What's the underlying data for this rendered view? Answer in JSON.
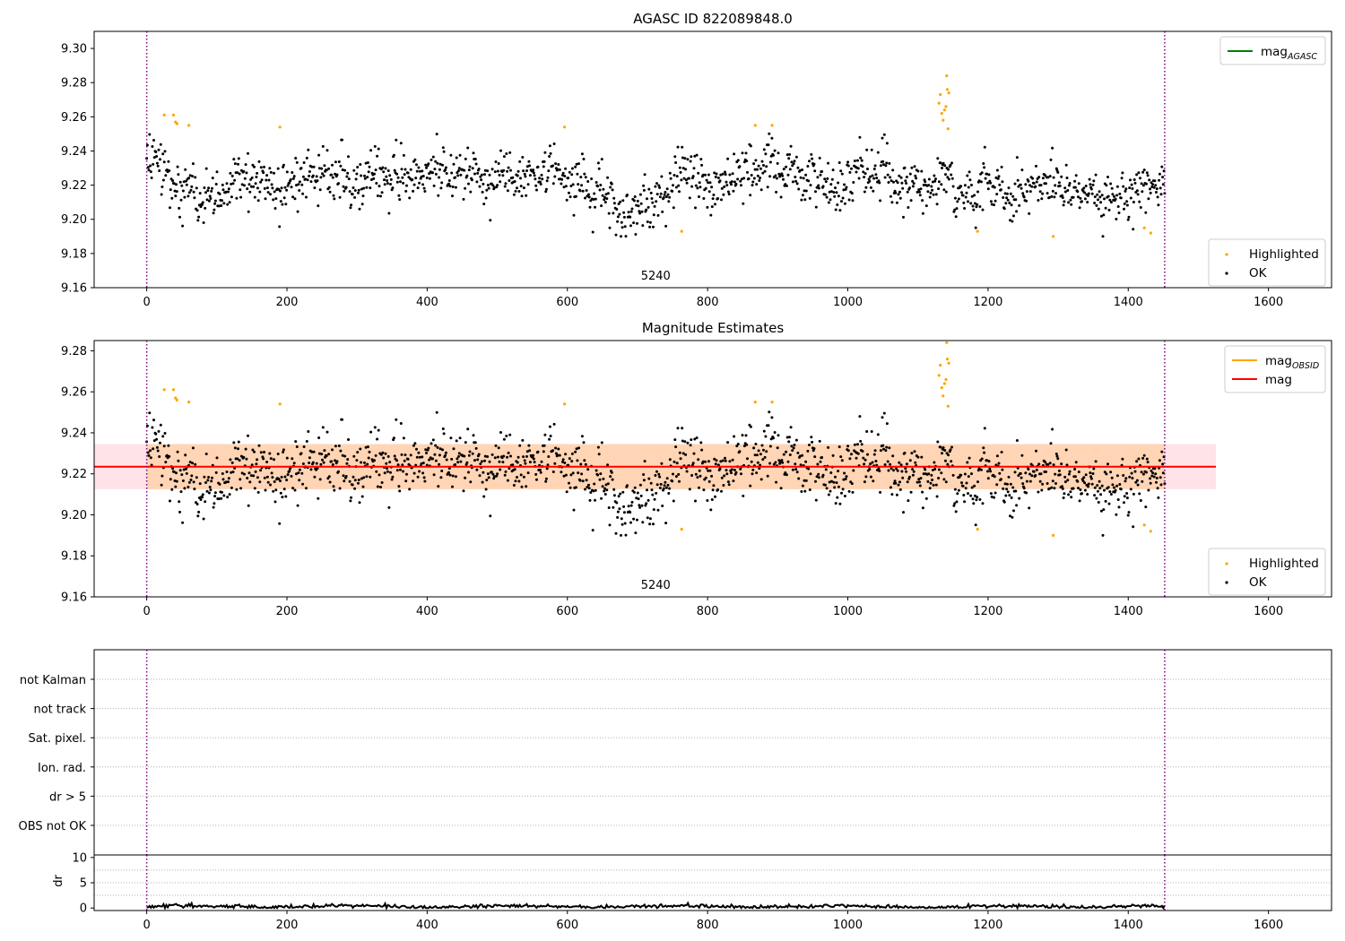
{
  "chart_data": [
    {
      "type": "scatter",
      "title": "AGASC ID 822089848.0",
      "xlim": [
        -75,
        1690
      ],
      "ylim": [
        9.16,
        9.31
      ],
      "xticks": [
        0,
        200,
        400,
        600,
        800,
        1000,
        1200,
        1400,
        1600
      ],
      "yticks": [
        9.16,
        9.18,
        9.2,
        9.22,
        9.24,
        9.26,
        9.28,
        9.3
      ],
      "vlines": [
        0,
        1452
      ],
      "annotation": {
        "text": "5240",
        "x": 726,
        "y": 9.167
      },
      "legend_upper": {
        "position": "upper right",
        "entries": [
          {
            "label": "mag",
            "subscript": "AGASC",
            "color": "#008000",
            "kind": "line"
          }
        ]
      },
      "legend_lower": {
        "position": "lower right",
        "entries": [
          {
            "label": "Highlighted",
            "color": "#ffa500",
            "kind": "marker"
          },
          {
            "label": "OK",
            "color": "#000000",
            "kind": "marker"
          }
        ]
      },
      "series_ok": {
        "x_range": [
          0,
          1452
        ],
        "count": 1450,
        "mean": 9.223,
        "std": 0.009
      },
      "series_highlighted": {
        "points": [
          [
            25,
            9.261
          ],
          [
            38,
            9.261
          ],
          [
            41,
            9.257
          ],
          [
            43,
            9.256
          ],
          [
            60,
            9.255
          ],
          [
            190,
            9.254
          ],
          [
            596,
            9.254
          ],
          [
            763,
            9.193
          ],
          [
            868,
            9.255
          ],
          [
            892,
            9.255
          ],
          [
            1130,
            9.268
          ],
          [
            1132,
            9.273
          ],
          [
            1134,
            9.262
          ],
          [
            1136,
            9.258
          ],
          [
            1138,
            9.264
          ],
          [
            1140,
            9.266
          ],
          [
            1141,
            9.284
          ],
          [
            1142,
            9.276
          ],
          [
            1143,
            9.253
          ],
          [
            1144,
            9.274
          ],
          [
            1185,
            9.193
          ],
          [
            1293,
            9.19
          ],
          [
            1423,
            9.195
          ],
          [
            1432,
            9.192
          ]
        ]
      }
    },
    {
      "type": "scatter",
      "title": "Magnitude Estimates",
      "xlim": [
        -75,
        1690
      ],
      "ylim": [
        9.16,
        9.285
      ],
      "xticks": [
        0,
        200,
        400,
        600,
        800,
        1000,
        1200,
        1400,
        1600
      ],
      "yticks": [
        9.16,
        9.18,
        9.2,
        9.22,
        9.24,
        9.26,
        9.28
      ],
      "vlines": [
        0,
        1452
      ],
      "annotation": {
        "text": "5240",
        "x": 726,
        "y": 9.167
      },
      "mag_line": {
        "value": 9.2235,
        "x_range": [
          -75,
          1525
        ],
        "color": "#ff0000"
      },
      "mag_band": {
        "low": 9.2125,
        "high": 9.2345,
        "x_range": [
          -75,
          1525
        ],
        "color": "#ffc0cb"
      },
      "mag_obsid_band": {
        "low": 9.2125,
        "high": 9.2345,
        "x_range": [
          0,
          1452
        ],
        "color": "#ffa500"
      },
      "legend_upper": {
        "position": "upper right",
        "entries": [
          {
            "label": "mag",
            "subscript": "OBSID",
            "color": "#ffa500",
            "kind": "line"
          },
          {
            "label": "mag",
            "subscript": "",
            "color": "#ff0000",
            "kind": "line"
          }
        ]
      },
      "legend_lower": {
        "position": "lower right",
        "entries": [
          {
            "label": "Highlighted",
            "color": "#ffa500",
            "kind": "marker"
          },
          {
            "label": "OK",
            "color": "#000000",
            "kind": "marker"
          }
        ]
      }
    },
    {
      "type": "scatter",
      "title": "",
      "xlim": [
        -75,
        1690
      ],
      "categories": [
        "not Kalman",
        "not track",
        "Sat. pixel.",
        "Ion. rad.",
        "dr > 5",
        "OBS not OK"
      ],
      "vlines": [
        0,
        1452
      ]
    },
    {
      "type": "line",
      "ylabel": "dr",
      "xlim": [
        -75,
        1690
      ],
      "ylim": [
        -0.5,
        10.5
      ],
      "xticks": [
        0,
        200,
        400,
        600,
        800,
        1000,
        1200,
        1400,
        1600
      ],
      "yticks": [
        0,
        5,
        10
      ],
      "vlines": [
        0,
        1452
      ],
      "series": [
        {
          "mean": 0.3,
          "x_range": [
            0,
            1452
          ]
        }
      ]
    }
  ]
}
